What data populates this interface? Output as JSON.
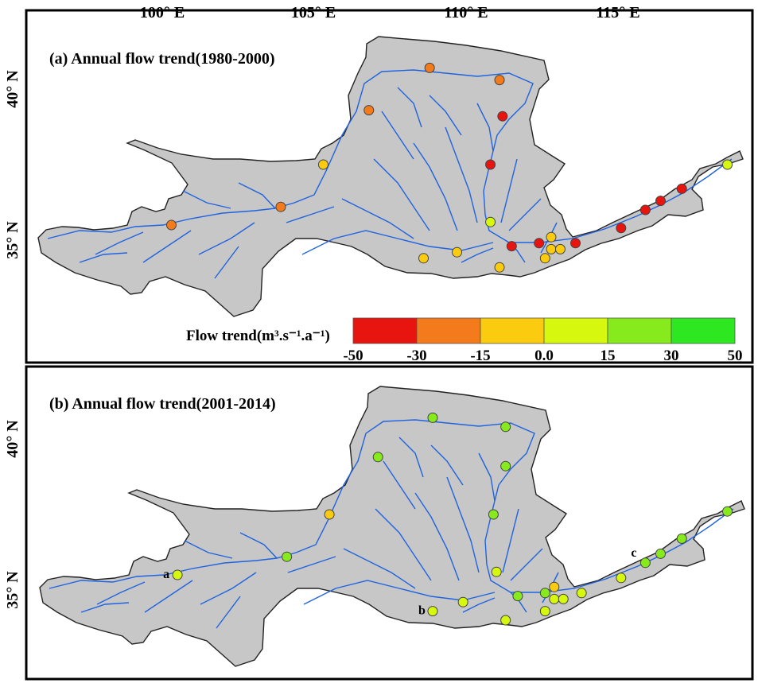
{
  "figure": {
    "top_longitude_labels": [
      "100° E",
      "105° E",
      "110° E",
      "115° E"
    ],
    "left_latitude_labels": [
      "40° N",
      "35° N"
    ],
    "panel_a_title": "(a) Annual flow trend(1980-2000)",
    "panel_b_title": "(b) Annual flow trend(2001-2014)",
    "colorbar": {
      "title": "Flow trend(m³.s⁻¹.a⁻¹)",
      "tick_labels": [
        "-50",
        "-30",
        "-15",
        "0.0",
        "15",
        "30",
        "50"
      ],
      "colors": [
        "#e8140f",
        "#f47b1b",
        "#fbcb10",
        "#d6f70e",
        "#86ea1c",
        "#2de820"
      ]
    },
    "site_labels": {
      "a": "a",
      "b": "b",
      "c": "c"
    },
    "colors": {
      "basin_fill": "#c7c7c7",
      "river": "#1f63e0",
      "frame": "#000000"
    },
    "panel_a_stations": [
      {
        "lon": 100.3,
        "lat": 35.5,
        "trend": -20
      },
      {
        "lon": 103.9,
        "lat": 36.1,
        "trend": -20
      },
      {
        "lon": 105.3,
        "lat": 37.5,
        "trend": -5
      },
      {
        "lon": 106.8,
        "lat": 39.3,
        "trend": -20
      },
      {
        "lon": 108.8,
        "lat": 40.7,
        "trend": -20
      },
      {
        "lon": 111.1,
        "lat": 40.3,
        "trend": -20
      },
      {
        "lon": 111.2,
        "lat": 39.1,
        "trend": -40
      },
      {
        "lon": 110.8,
        "lat": 37.5,
        "trend": -40
      },
      {
        "lon": 110.8,
        "lat": 35.6,
        "trend": 5
      },
      {
        "lon": 109.7,
        "lat": 34.6,
        "trend": -5
      },
      {
        "lon": 108.6,
        "lat": 34.4,
        "trend": -5
      },
      {
        "lon": 111.1,
        "lat": 34.1,
        "trend": -5
      },
      {
        "lon": 111.5,
        "lat": 34.8,
        "trend": -40
      },
      {
        "lon": 112.4,
        "lat": 34.9,
        "trend": -40
      },
      {
        "lon": 112.8,
        "lat": 35.1,
        "trend": -5
      },
      {
        "lon": 112.8,
        "lat": 34.7,
        "trend": -5
      },
      {
        "lon": 113.1,
        "lat": 34.7,
        "trend": -5
      },
      {
        "lon": 112.6,
        "lat": 34.4,
        "trend": -5
      },
      {
        "lon": 113.6,
        "lat": 34.9,
        "trend": -40
      },
      {
        "lon": 115.1,
        "lat": 35.4,
        "trend": -40
      },
      {
        "lon": 115.9,
        "lat": 36.0,
        "trend": -40
      },
      {
        "lon": 116.4,
        "lat": 36.3,
        "trend": -40
      },
      {
        "lon": 117.1,
        "lat": 36.7,
        "trend": -40
      },
      {
        "lon": 118.6,
        "lat": 37.5,
        "trend": 5
      }
    ],
    "panel_b_stations": [
      {
        "lon": 100.5,
        "lat": 35.5,
        "trend": 10,
        "site": "a"
      },
      {
        "lon": 104.1,
        "lat": 36.1,
        "trend": 20
      },
      {
        "lon": 105.5,
        "lat": 37.5,
        "trend": -5
      },
      {
        "lon": 107.1,
        "lat": 39.4,
        "trend": 20
      },
      {
        "lon": 108.9,
        "lat": 40.7,
        "trend": 20
      },
      {
        "lon": 111.3,
        "lat": 40.4,
        "trend": 20
      },
      {
        "lon": 111.3,
        "lat": 39.1,
        "trend": 20
      },
      {
        "lon": 110.9,
        "lat": 37.5,
        "trend": 20
      },
      {
        "lon": 111.0,
        "lat": 35.6,
        "trend": 5
      },
      {
        "lon": 109.9,
        "lat": 34.6,
        "trend": 5
      },
      {
        "lon": 108.9,
        "lat": 34.3,
        "trend": 5,
        "site": "b"
      },
      {
        "lon": 111.3,
        "lat": 34.0,
        "trend": 5
      },
      {
        "lon": 111.7,
        "lat": 34.8,
        "trend": 20
      },
      {
        "lon": 112.6,
        "lat": 34.9,
        "trend": 20
      },
      {
        "lon": 112.9,
        "lat": 35.1,
        "trend": -5
      },
      {
        "lon": 112.9,
        "lat": 34.7,
        "trend": 5
      },
      {
        "lon": 113.2,
        "lat": 34.7,
        "trend": 5
      },
      {
        "lon": 112.6,
        "lat": 34.3,
        "trend": 5
      },
      {
        "lon": 113.8,
        "lat": 34.9,
        "trend": 10
      },
      {
        "lon": 115.1,
        "lat": 35.4,
        "trend": 10
      },
      {
        "lon": 115.9,
        "lat": 35.9,
        "trend": 20,
        "site": "c"
      },
      {
        "lon": 116.4,
        "lat": 36.2,
        "trend": 20
      },
      {
        "lon": 117.1,
        "lat": 36.7,
        "trend": 20
      },
      {
        "lon": 118.6,
        "lat": 37.6,
        "trend": 20
      }
    ]
  }
}
